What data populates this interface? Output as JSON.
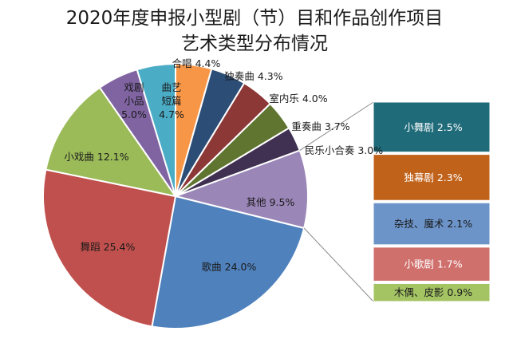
{
  "chart_data": {
    "type": "pie",
    "title": "2020年度申报小型剧（节）目和作品创作项目艺术类型分布情况",
    "title_lines": [
      "2020年度申报小型剧（节）目和作品创作项目",
      "艺术类型分布情况"
    ],
    "pie": {
      "slices": [
        {
          "name": "合唱",
          "value": 4.4,
          "label": "合唱 4.4%",
          "color": "#f79646"
        },
        {
          "name": "独奏曲",
          "value": 4.3,
          "label": "独奏曲 4.3%",
          "color": "#2c4d75"
        },
        {
          "name": "室内乐",
          "value": 4.0,
          "label": "室内乐 4.0%",
          "color": "#8c3836"
        },
        {
          "name": "重奏曲",
          "value": 3.7,
          "label": "重奏曲 3.7%",
          "color": "#5f7530"
        },
        {
          "name": "民乐小合奏",
          "value": 3.0,
          "label": "民乐小合奏 3.0%",
          "color": "#403152"
        },
        {
          "name": "其他",
          "value": 9.5,
          "label": "其他 9.5%",
          "color": "#9b86b8"
        },
        {
          "name": "歌曲",
          "value": 24.0,
          "label": "歌曲 24.0%",
          "color": "#4f81bd"
        },
        {
          "name": "舞蹈",
          "value": 25.4,
          "label": "舞蹈 25.4%",
          "color": "#c0504d"
        },
        {
          "name": "小戏曲",
          "value": 12.1,
          "label": "小戏曲 12.1%",
          "color": "#9bbb59"
        },
        {
          "name": "戏剧小品",
          "value": 5.0,
          "label_lines": [
            "戏剧",
            "小品",
            "5.0%"
          ],
          "color": "#8064a2"
        },
        {
          "name": "曲艺短篇",
          "value": 4.7,
          "label_lines": [
            "曲艺",
            "短篇",
            "4.7%"
          ],
          "color": "#4bacc6"
        }
      ]
    },
    "breakdown": {
      "of": "其他",
      "type": "stacked-bar",
      "items": [
        {
          "name": "小舞剧",
          "value": 2.5,
          "label": "小舞剧 2.5%",
          "color": "#1f6b7a",
          "text_color": "#ffffff"
        },
        {
          "name": "独幕剧",
          "value": 2.3,
          "label": "独幕剧 2.3%",
          "color": "#c0621a",
          "text_color": "#ffffff"
        },
        {
          "name": "杂技、魔术",
          "value": 2.1,
          "label": "杂技、魔术 2.1%",
          "color": "#6c94c9",
          "text_color": "#1a1a1a"
        },
        {
          "name": "小歌剧",
          "value": 1.7,
          "label": "小歌剧 1.7%",
          "color": "#d0706d",
          "text_color": "#ffffff"
        },
        {
          "name": "木偶、皮影",
          "value": 0.9,
          "label": "木偶、皮影 0.9%",
          "color": "#a4c464",
          "text_color": "#1a1a1a"
        }
      ]
    }
  }
}
